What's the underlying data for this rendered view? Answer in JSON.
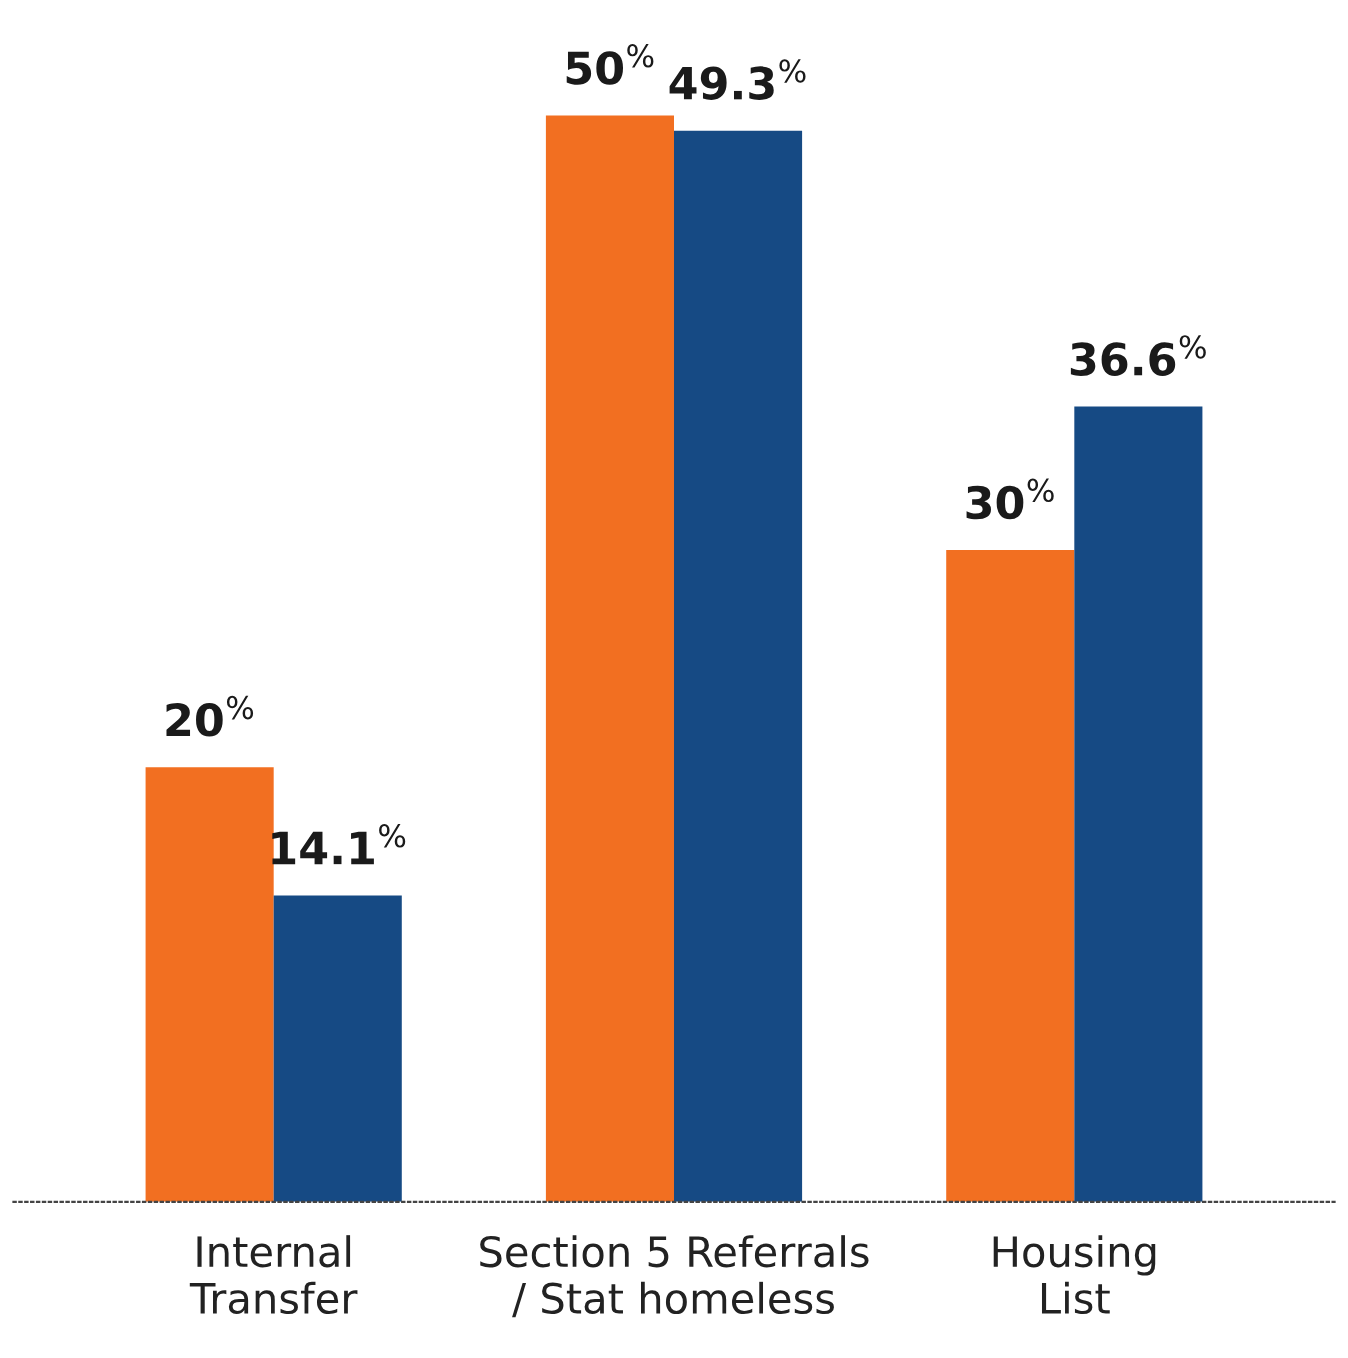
{
  "chart_data": {
    "type": "bar",
    "categories": [
      "Internal\nTransfer",
      "Section 5 Referrals\n/ Stat homeless",
      "Housing\nList"
    ],
    "series": [
      {
        "color": "#f26f21",
        "values": [
          20,
          50,
          30
        ],
        "value_labels": [
          "20$^{%}$",
          "50$^{%}$",
          "30$^{%}$"
        ]
      },
      {
        "color": "#164a84",
        "values": [
          14.1,
          49.3,
          36.6
        ],
        "value_labels": [
          "14.1$^{%}$",
          "49.3$^{%}$",
          "36.6$^{%}$"
        ]
      }
    ],
    "grid": false,
    "legend": false
  }
}
